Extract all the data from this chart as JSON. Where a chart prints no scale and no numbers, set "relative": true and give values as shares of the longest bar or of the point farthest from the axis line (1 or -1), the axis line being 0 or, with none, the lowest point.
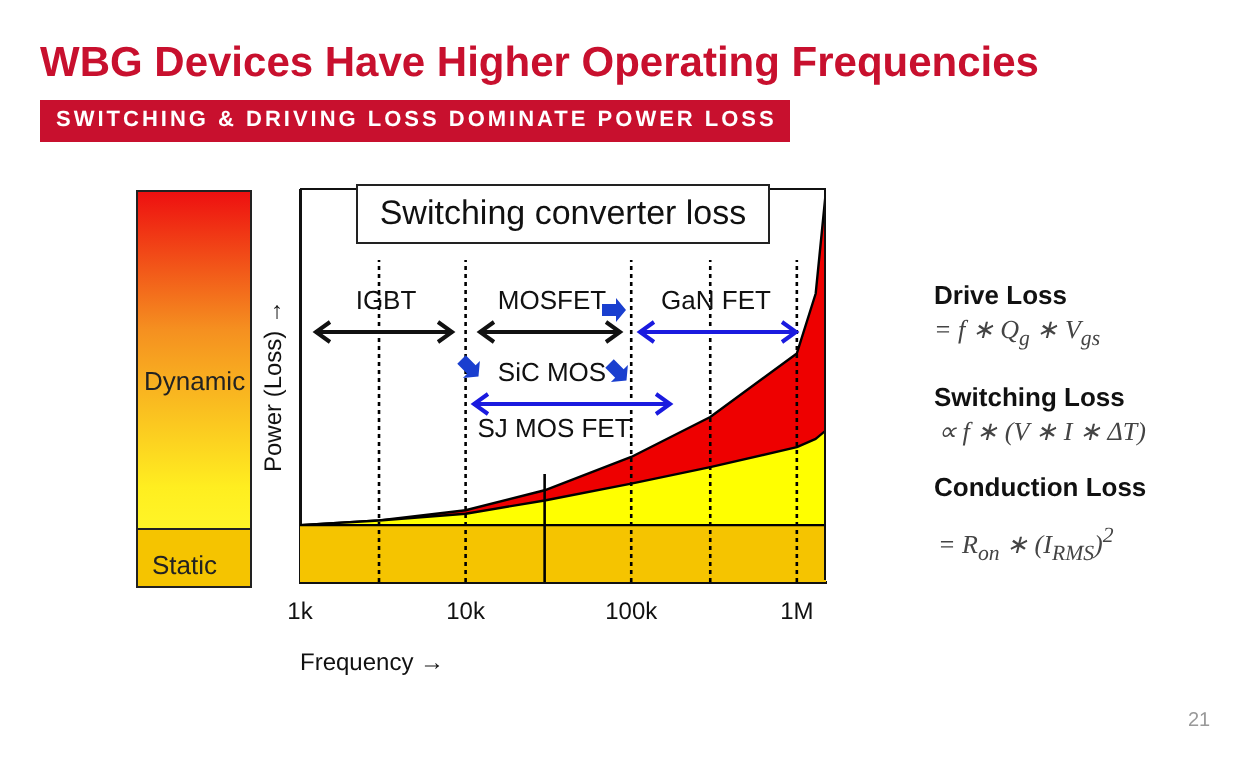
{
  "chart_data": {
    "type": "area",
    "title": "WBG Devices Have Higher Operating Frequencies",
    "subtitle": "SWITCHING & DRIVING LOSS DOMINATE POWER LOSS",
    "xlabel": "Frequency →",
    "ylabel": "Power (Loss) →",
    "relative": true,
    "log": "x",
    "legend": false,
    "x": [
      1000,
      3000,
      10000,
      30000,
      100000,
      300000,
      1000000,
      1300000,
      1500000
    ],
    "xlim": [
      1000,
      1500000
    ],
    "xticks": [
      {
        "value": 1000,
        "label": "1k"
      },
      {
        "value": 10000,
        "label": "10k"
      },
      {
        "value": 100000,
        "label": "100k"
      },
      {
        "value": 1000000,
        "label": "1M"
      }
    ],
    "series": [
      {
        "color": "#f5c400",
        "values": [
          0.145,
          0.145,
          0.145,
          0.145,
          0.145,
          0.145,
          0.145,
          0.145,
          0.145
        ]
      },
      {
        "color": "#ffff00",
        "values": [
          0.145,
          0.157,
          0.174,
          0.208,
          0.251,
          0.293,
          0.344,
          0.365,
          0.387
        ]
      },
      {
        "color": "#ee0000",
        "values": [
          0.145,
          0.157,
          0.183,
          0.234,
          0.319,
          0.421,
          0.583,
          0.736,
          1
        ]
      }
    ],
    "ref_lines": [
      {
        "axis": "x",
        "value": 3000,
        "line_style": "dotted",
        "color": "#000000"
      },
      {
        "axis": "x",
        "value": 10000,
        "line_style": "dotted",
        "color": "#000000"
      },
      {
        "axis": "x",
        "value": 30000,
        "line_style": "solid",
        "color": "#000000"
      },
      {
        "axis": "x",
        "value": 100000,
        "line_style": "dotted",
        "color": "#000000"
      },
      {
        "axis": "x",
        "value": 300000,
        "line_style": "dotted",
        "color": "#000000"
      },
      {
        "axis": "x",
        "value": 1000000,
        "line_style": "dotted",
        "color": "#000000"
      }
    ],
    "annotations": [
      "Switching converter loss",
      "IGBT",
      "MOSFET",
      "GaN FET",
      "SiC MOS",
      "SJ MOS FET",
      "Dynamic",
      "Static",
      "Drive Loss",
      "= f ∗ Q$_{g}$ ∗ V$_{gs}$",
      "Switching Loss",
      "∝ f ∗ (V ∗ I ∗ ΔT)",
      "Conduction Loss",
      "= R$_{on}$ ∗ (I$_{RMS}$)$^{2}$",
      "21"
    ]
  }
}
